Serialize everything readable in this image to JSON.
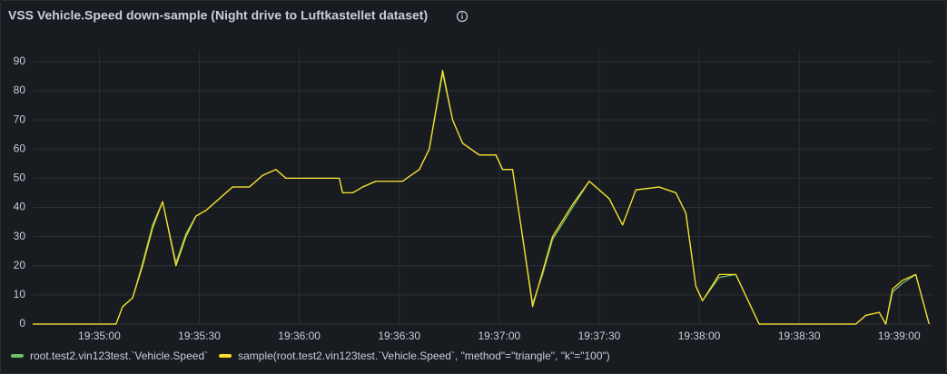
{
  "chart_data": {
    "type": "line",
    "title": "VSS Vehicle.Speed down-sample (Night drive to Luftkastellet dataset)",
    "x": [
      "19:34:40",
      "19:35:05",
      "19:35:07",
      "19:35:10",
      "19:35:13",
      "19:35:16",
      "19:35:19",
      "19:35:23",
      "19:35:26",
      "19:35:29",
      "19:35:32",
      "19:35:37",
      "19:35:40",
      "19:35:45",
      "19:35:49",
      "19:35:53",
      "19:35:56",
      "19:36:12",
      "19:36:13",
      "19:36:16",
      "19:36:19",
      "19:36:23",
      "19:36:31",
      "19:36:36",
      "19:36:39",
      "19:36:43",
      "19:36:46",
      "19:36:49",
      "19:36:54",
      "19:36:59",
      "19:37:01",
      "19:37:04",
      "19:37:07",
      "19:37:10",
      "19:37:13",
      "19:37:16",
      "19:37:22",
      "19:37:27",
      "19:37:33",
      "19:37:37",
      "19:37:41",
      "19:37:48",
      "19:37:53",
      "19:37:56",
      "19:37:59",
      "19:38:01",
      "19:38:06",
      "19:38:11",
      "19:38:18",
      "19:38:47",
      "19:38:50",
      "19:38:54",
      "19:38:56",
      "19:38:58",
      "19:39:01",
      "19:39:05",
      "19:39:09"
    ],
    "series": [
      {
        "name": "root.test2.vin123test.`Vehicle.Speed`",
        "color": "#73bf69",
        "values": [
          0,
          0,
          6,
          9,
          21,
          34,
          42,
          21,
          31,
          37,
          39,
          44,
          47,
          47,
          51,
          53,
          50,
          50,
          45,
          45,
          47,
          49,
          49,
          53,
          60,
          86,
          70,
          62,
          58,
          58,
          53,
          53,
          30,
          7,
          17,
          29,
          40,
          49,
          43,
          34,
          46,
          47,
          45,
          38,
          13,
          8,
          16,
          17,
          0,
          0,
          3,
          4,
          0,
          11,
          14,
          17,
          0
        ]
      },
      {
        "name": "sample(root.test2.vin123test.`Vehicle.Speed`, \"method\"=\"triangle\", \"k\"=\"100\")",
        "color": "#fade2a",
        "values": [
          0,
          0,
          6,
          9,
          20,
          33,
          42,
          20,
          30,
          37,
          39,
          44,
          47,
          47,
          51,
          53,
          50,
          50,
          45,
          45,
          47,
          49,
          49,
          53,
          60,
          87,
          70,
          62,
          58,
          58,
          53,
          53,
          30,
          6,
          18,
          30,
          41,
          49,
          43,
          34,
          46,
          47,
          45,
          38,
          13,
          8,
          17,
          17,
          0,
          0,
          3,
          4,
          0,
          12,
          15,
          17,
          0
        ]
      }
    ],
    "xlim": [
      "19:34:40",
      "19:39:10"
    ],
    "xticks": [
      "19:35:00",
      "19:35:30",
      "19:36:00",
      "19:36:30",
      "19:37:00",
      "19:37:30",
      "19:38:00",
      "19:38:30",
      "19:39:00"
    ],
    "ylim": [
      0,
      94
    ],
    "yticks": [
      0,
      10,
      20,
      30,
      40,
      50,
      60,
      70,
      80,
      90
    ],
    "grid": true
  }
}
